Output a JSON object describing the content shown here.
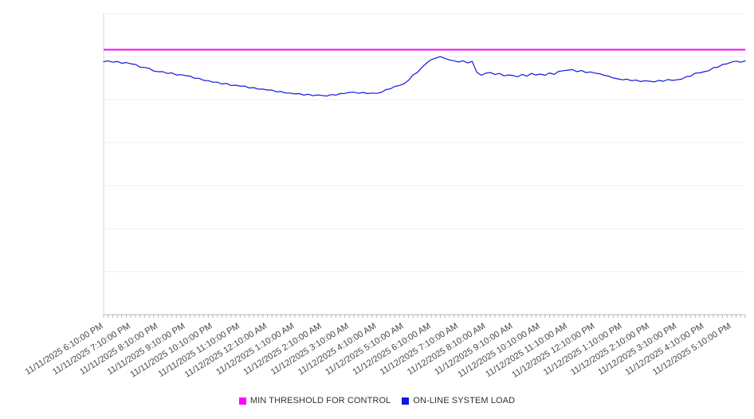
{
  "chart": {
    "legend": {
      "items": [
        {
          "label": "MIN THRESHOLD FOR CONTROL",
          "color": "#ff00ff"
        },
        {
          "label": "ON-LINE SYSTEM LOAD",
          "color": "#1515e0"
        }
      ]
    }
  },
  "chart_data": {
    "type": "line",
    "title": "",
    "xlabel": "",
    "ylabel": "",
    "ylim": [
      0,
      100
    ],
    "grid": true,
    "grid_divisions": 7,
    "y_axis_labels_visible": false,
    "legend_position": "bottom",
    "x_tick_label_rotation_deg": -32,
    "x_interval_minutes": 10,
    "x_label_every_n_points": 6,
    "x_tick_labels": [
      "11/11/2025 6:10:00 PM",
      "11/11/2025 7:10:00 PM",
      "11/11/2025 8:10:00 PM",
      "11/11/2025 9:10:00 PM",
      "11/11/2025 10:10:00 PM",
      "11/11/2025 11:10:00 PM",
      "11/12/2025 12:10:00 AM",
      "11/12/2025 1:10:00 AM",
      "11/12/2025 2:10:00 AM",
      "11/12/2025 3:10:00 AM",
      "11/12/2025 4:10:00 AM",
      "11/12/2025 5:10:00 AM",
      "11/12/2025 6:10:00 AM",
      "11/12/2025 7:10:00 AM",
      "11/12/2025 8:10:00 AM",
      "11/12/2025 9:10:00 AM",
      "11/12/2025 10:10:00 AM",
      "11/12/2025 11:10:00 AM",
      "11/12/2025 12:10:00 PM",
      "11/12/2025 1:10:00 PM",
      "11/12/2025 2:10:00 PM",
      "11/12/2025 3:10:00 PM",
      "11/12/2025 4:10:00 PM",
      "11/12/2025 5:10:00 PM"
    ],
    "series": [
      {
        "name": "MIN THRESHOLD FOR CONTROL",
        "color": "#ff00ff",
        "style": "constant",
        "value": 88
      },
      {
        "name": "ON-LINE SYSTEM LOAD",
        "color": "#1515e0",
        "style": "line",
        "values": [
          84.0,
          84.3,
          83.8,
          84.1,
          83.5,
          83.7,
          83.3,
          83.1,
          82.2,
          82.1,
          81.8,
          80.9,
          80.7,
          80.7,
          80.1,
          80.3,
          79.6,
          79.7,
          79.4,
          79.2,
          78.5,
          78.5,
          77.8,
          77.7,
          77.2,
          77.2,
          76.6,
          76.8,
          76.1,
          76.2,
          75.9,
          75.9,
          75.3,
          75.4,
          74.9,
          74.9,
          74.6,
          74.6,
          74.0,
          74.1,
          73.6,
          73.6,
          73.3,
          73.4,
          72.9,
          73.2,
          72.7,
          73.0,
          72.8,
          72.6,
          73.1,
          72.9,
          73.4,
          73.5,
          73.8,
          73.9,
          73.5,
          73.8,
          73.4,
          73.6,
          73.5,
          73.8,
          74.7,
          75.0,
          75.8,
          76.1,
          76.7,
          77.8,
          79.6,
          80.5,
          82.2,
          83.6,
          84.7,
          85.2,
          85.7,
          85.1,
          84.6,
          84.3,
          83.9,
          84.3,
          83.6,
          84.1,
          80.5,
          79.5,
          80.2,
          80.4,
          79.8,
          80.1,
          79.3,
          79.6,
          79.4,
          79.0,
          79.8,
          79.2,
          80.1,
          79.6,
          79.9,
          79.5,
          80.3,
          79.8,
          80.8,
          81.0,
          81.2,
          81.4,
          80.7,
          81.1,
          80.4,
          80.6,
          80.2,
          80.0,
          79.5,
          79.2,
          78.6,
          78.3,
          78.0,
          78.2,
          77.7,
          77.9,
          77.4,
          77.7,
          77.5,
          77.3,
          77.8,
          77.5,
          78.1,
          77.8,
          78.0,
          78.2,
          79.0,
          79.2,
          80.2,
          80.3,
          80.7,
          81.0,
          82.0,
          82.2,
          83.1,
          83.3,
          83.9,
          84.2,
          83.8,
          84.3
        ]
      }
    ]
  }
}
